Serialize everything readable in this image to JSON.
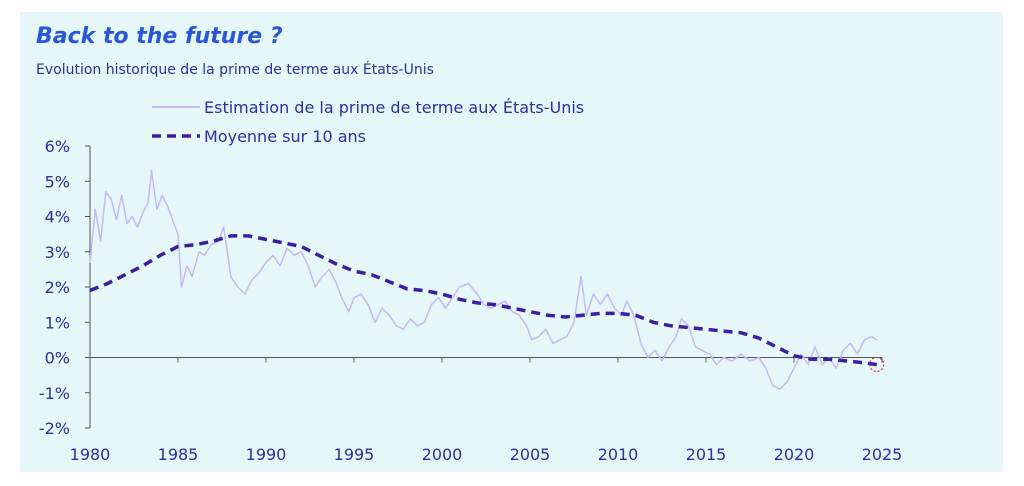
{
  "header": {
    "title": "Back to the future ?",
    "subtitle": "Evolution historique de la prime de terme aux États-Unis"
  },
  "colors": {
    "background": "#e5f7f8",
    "estimate": "#c6b9f2",
    "average": "#3a1fa0",
    "axis": "#555555",
    "text": "#2d2f9e",
    "title": "#2a56d8",
    "marker": "#e03030"
  },
  "chart_data": {
    "type": "line",
    "x_label": "",
    "y_label": "",
    "x_range": [
      1980,
      2025
    ],
    "y_range": [
      -2,
      6
    ],
    "x_ticks": [
      "1980",
      "1985",
      "1990",
      "1995",
      "2000",
      "2005",
      "2010",
      "2015",
      "2020",
      "2025"
    ],
    "y_ticks": [
      "6%",
      "5%",
      "4%",
      "3%",
      "2%",
      "1%",
      "0%",
      "-1%",
      "-2%"
    ],
    "legend_position": "top-center",
    "grid": false,
    "series": [
      {
        "name": "Estimation de la prime de terme aux États-Unis",
        "style": "solid",
        "points": [
          [
            1980.0,
            2.7
          ],
          [
            1980.3,
            4.2
          ],
          [
            1980.6,
            3.3
          ],
          [
            1980.9,
            4.7
          ],
          [
            1981.2,
            4.5
          ],
          [
            1981.5,
            3.9
          ],
          [
            1981.8,
            4.6
          ],
          [
            1982.1,
            3.8
          ],
          [
            1982.4,
            4.0
          ],
          [
            1982.7,
            3.7
          ],
          [
            1983.0,
            4.1
          ],
          [
            1983.3,
            4.4
          ],
          [
            1983.5,
            5.3
          ],
          [
            1983.8,
            4.2
          ],
          [
            1984.1,
            4.6
          ],
          [
            1984.4,
            4.3
          ],
          [
            1984.7,
            3.9
          ],
          [
            1985.0,
            3.5
          ],
          [
            1985.2,
            2.0
          ],
          [
            1985.5,
            2.6
          ],
          [
            1985.8,
            2.3
          ],
          [
            1986.2,
            3.0
          ],
          [
            1986.5,
            2.9
          ],
          [
            1986.9,
            3.2
          ],
          [
            1987.3,
            3.3
          ],
          [
            1987.6,
            3.7
          ],
          [
            1988.0,
            2.3
          ],
          [
            1988.4,
            2.0
          ],
          [
            1988.8,
            1.8
          ],
          [
            1989.2,
            2.2
          ],
          [
            1989.6,
            2.4
          ],
          [
            1990.0,
            2.7
          ],
          [
            1990.4,
            2.9
          ],
          [
            1990.8,
            2.6
          ],
          [
            1991.2,
            3.1
          ],
          [
            1991.6,
            2.9
          ],
          [
            1992.0,
            3.0
          ],
          [
            1992.4,
            2.6
          ],
          [
            1992.8,
            2.0
          ],
          [
            1993.2,
            2.3
          ],
          [
            1993.6,
            2.5
          ],
          [
            1994.0,
            2.1
          ],
          [
            1994.3,
            1.7
          ],
          [
            1994.7,
            1.3
          ],
          [
            1995.0,
            1.7
          ],
          [
            1995.4,
            1.8
          ],
          [
            1995.8,
            1.5
          ],
          [
            1996.2,
            1.0
          ],
          [
            1996.6,
            1.4
          ],
          [
            1997.0,
            1.2
          ],
          [
            1997.4,
            0.9
          ],
          [
            1997.8,
            0.8
          ],
          [
            1998.2,
            1.1
          ],
          [
            1998.6,
            0.9
          ],
          [
            1999.0,
            1.0
          ],
          [
            1999.4,
            1.5
          ],
          [
            1999.8,
            1.7
          ],
          [
            2000.2,
            1.4
          ],
          [
            2000.6,
            1.7
          ],
          [
            2001.0,
            2.0
          ],
          [
            2001.5,
            2.1
          ],
          [
            2002.0,
            1.8
          ],
          [
            2002.4,
            1.5
          ],
          [
            2002.8,
            1.4
          ],
          [
            2003.2,
            1.5
          ],
          [
            2003.6,
            1.6
          ],
          [
            2004.0,
            1.3
          ],
          [
            2004.4,
            1.2
          ],
          [
            2004.8,
            0.9
          ],
          [
            2005.1,
            0.5
          ],
          [
            2005.5,
            0.6
          ],
          [
            2005.9,
            0.8
          ],
          [
            2006.3,
            0.4
          ],
          [
            2006.7,
            0.5
          ],
          [
            2007.1,
            0.6
          ],
          [
            2007.5,
            1.0
          ],
          [
            2007.9,
            2.3
          ],
          [
            2008.2,
            1.2
          ],
          [
            2008.6,
            1.8
          ],
          [
            2009.0,
            1.5
          ],
          [
            2009.4,
            1.8
          ],
          [
            2009.8,
            1.4
          ],
          [
            2010.2,
            1.2
          ],
          [
            2010.5,
            1.6
          ],
          [
            2010.9,
            1.2
          ],
          [
            2011.3,
            0.4
          ],
          [
            2011.7,
            0.0
          ],
          [
            2012.1,
            0.2
          ],
          [
            2012.5,
            -0.1
          ],
          [
            2012.9,
            0.3
          ],
          [
            2013.3,
            0.6
          ],
          [
            2013.6,
            1.1
          ],
          [
            2014.0,
            0.9
          ],
          [
            2014.4,
            0.3
          ],
          [
            2014.8,
            0.2
          ],
          [
            2015.2,
            0.1
          ],
          [
            2015.6,
            -0.2
          ],
          [
            2016.0,
            0.0
          ],
          [
            2016.5,
            -0.1
          ],
          [
            2017.0,
            0.1
          ],
          [
            2017.5,
            -0.1
          ],
          [
            2018.0,
            0.0
          ],
          [
            2018.4,
            -0.3
          ],
          [
            2018.8,
            -0.8
          ],
          [
            2019.2,
            -0.9
          ],
          [
            2019.6,
            -0.7
          ],
          [
            2020.0,
            -0.3
          ],
          [
            2020.4,
            0.1
          ],
          [
            2020.8,
            -0.2
          ],
          [
            2021.2,
            0.3
          ],
          [
            2021.6,
            -0.2
          ],
          [
            2022.0,
            0.0
          ],
          [
            2022.4,
            -0.3
          ],
          [
            2022.8,
            0.2
          ],
          [
            2023.2,
            0.4
          ],
          [
            2023.6,
            0.1
          ],
          [
            2024.0,
            0.5
          ],
          [
            2024.4,
            0.6
          ],
          [
            2024.7,
            0.5
          ]
        ]
      },
      {
        "name": "Moyenne sur 10 ans",
        "style": "dashed",
        "points": [
          [
            1980,
            1.9
          ],
          [
            1981,
            2.1
          ],
          [
            1982,
            2.35
          ],
          [
            1983,
            2.6
          ],
          [
            1984,
            2.9
          ],
          [
            1985,
            3.15
          ],
          [
            1986,
            3.2
          ],
          [
            1987,
            3.3
          ],
          [
            1988,
            3.45
          ],
          [
            1989,
            3.45
          ],
          [
            1990,
            3.35
          ],
          [
            1991,
            3.25
          ],
          [
            1992,
            3.15
          ],
          [
            1993,
            2.9
          ],
          [
            1994,
            2.65
          ],
          [
            1995,
            2.45
          ],
          [
            1996,
            2.35
          ],
          [
            1997,
            2.15
          ],
          [
            1998,
            1.95
          ],
          [
            1999,
            1.9
          ],
          [
            2000,
            1.8
          ],
          [
            2001,
            1.65
          ],
          [
            2002,
            1.55
          ],
          [
            2003,
            1.5
          ],
          [
            2004,
            1.4
          ],
          [
            2005,
            1.3
          ],
          [
            2006,
            1.2
          ],
          [
            2007,
            1.15
          ],
          [
            2008,
            1.2
          ],
          [
            2009,
            1.25
          ],
          [
            2010,
            1.25
          ],
          [
            2011,
            1.2
          ],
          [
            2012,
            1.0
          ],
          [
            2013,
            0.9
          ],
          [
            2014,
            0.85
          ],
          [
            2015,
            0.8
          ],
          [
            2016,
            0.75
          ],
          [
            2017,
            0.7
          ],
          [
            2018,
            0.55
          ],
          [
            2019,
            0.3
          ],
          [
            2020,
            0.05
          ],
          [
            2021,
            -0.05
          ],
          [
            2022,
            -0.05
          ],
          [
            2023,
            -0.1
          ],
          [
            2024,
            -0.15
          ],
          [
            2024.7,
            -0.2
          ]
        ]
      }
    ],
    "annotation": {
      "type": "circle-marker",
      "x": 2024.7,
      "y": -0.2
    }
  }
}
